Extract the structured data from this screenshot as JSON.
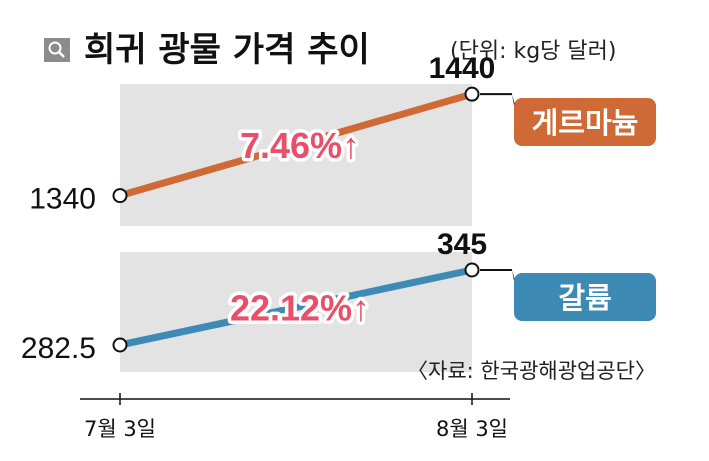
{
  "chart_data": {
    "type": "line",
    "title": "희귀 광물 가격 추이",
    "unit_note": "(단위: kg당 달러)",
    "source": "〈자료: 한국광해광업공단〉",
    "categories": [
      "7월 3일",
      "8월 3일"
    ],
    "series": [
      {
        "name": "게르마늄",
        "values": [
          1340,
          1440
        ],
        "value_labels": [
          "1340",
          "1440"
        ],
        "change_label": "7.46%↑",
        "color": "#cf6a36"
      },
      {
        "name": "갈륨",
        "values": [
          282.5,
          345
        ],
        "value_labels": [
          "282.5",
          "345"
        ],
        "change_label": "22.12%↑",
        "color": "#3d8ab5"
      }
    ],
    "panel_ylim": [
      [
        1310,
        1450
      ],
      [
        260,
        360
      ]
    ],
    "change_label_color": "#e8506a",
    "panel_color": "#e3e3e3",
    "legend": "right, boxed labels"
  },
  "icons": {
    "search": "search-icon"
  }
}
